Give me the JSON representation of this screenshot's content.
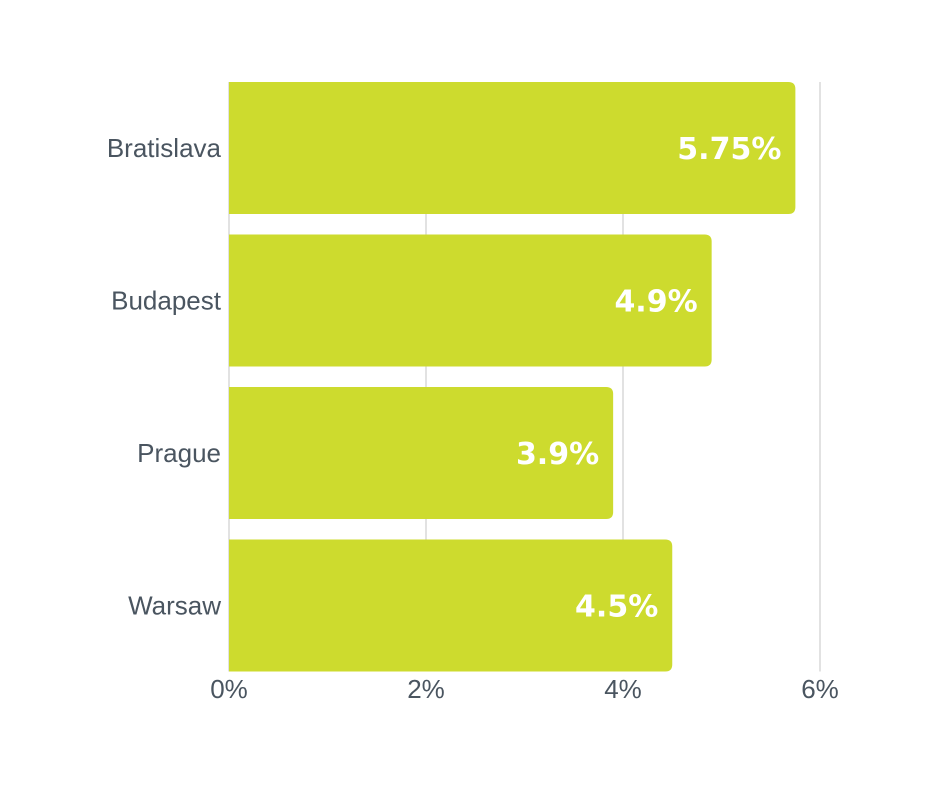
{
  "chart_data": {
    "type": "bar",
    "orientation": "horizontal",
    "categories": [
      "Bratislava",
      "Budapest",
      "Prague",
      "Warsaw"
    ],
    "values": [
      5.75,
      4.9,
      3.9,
      4.5
    ],
    "data_labels": [
      "5.75%",
      "4.9%",
      "3.9%",
      "4.5%"
    ],
    "xlim": [
      0,
      6
    ],
    "x_ticks": [
      0,
      2,
      4,
      6
    ],
    "x_tick_labels": [
      "0%",
      "2%",
      "4%",
      "6%"
    ],
    "grid": true,
    "legend": "none",
    "title": "",
    "xlabel": "",
    "ylabel": "",
    "colors": {
      "bar": "#cddb2e",
      "data_label": "#ffffff",
      "axis_text": "#4a5560",
      "grid": "#d9d9d9"
    }
  }
}
